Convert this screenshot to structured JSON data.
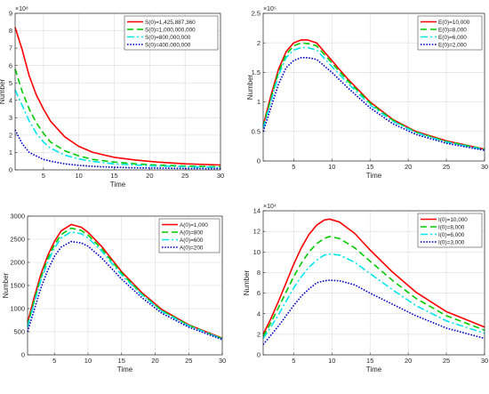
{
  "chart_data": [
    {
      "type": "line",
      "xlabel": "Time",
      "ylabel": "Number",
      "xlim": [
        1,
        30
      ],
      "ylim": [
        0,
        9
      ],
      "y_exponent": "×10⁸",
      "x_ticks": [
        "5",
        "10",
        "15",
        "20",
        "25",
        "30"
      ],
      "y_ticks": [
        "0",
        "1",
        "2",
        "3",
        "4",
        "5",
        "6",
        "7",
        "8",
        "9"
      ],
      "grid": true,
      "legend_position": "top-right",
      "x": [
        1,
        2,
        3,
        4,
        5,
        6,
        8,
        10,
        12,
        15,
        18,
        21,
        25,
        30
      ],
      "series": [
        {
          "name": "S(0)=1,425,887,360",
          "color": "#ff0000",
          "style": "solid",
          "values": [
            8.2,
            6.9,
            5.4,
            4.3,
            3.5,
            2.8,
            1.9,
            1.35,
            1.0,
            0.72,
            0.57,
            0.45,
            0.35,
            0.28
          ]
        },
        {
          "name": "S(0)=1,000,000,000",
          "color": "#00cc00",
          "style": "dashed",
          "values": [
            5.8,
            4.5,
            3.5,
            2.7,
            2.1,
            1.6,
            1.1,
            0.8,
            0.6,
            0.45,
            0.35,
            0.28,
            0.22,
            0.18
          ]
        },
        {
          "name": "S(0)=800,000,000",
          "color": "#00e5ee",
          "style": "dashdot",
          "values": [
            4.6,
            3.7,
            2.8,
            2.1,
            1.6,
            1.25,
            0.85,
            0.63,
            0.48,
            0.35,
            0.28,
            0.22,
            0.18,
            0.14
          ]
        },
        {
          "name": "S(0)=400,000,000",
          "color": "#0000cc",
          "style": "dotted",
          "values": [
            2.3,
            1.5,
            1.0,
            0.8,
            0.6,
            0.5,
            0.35,
            0.26,
            0.2,
            0.15,
            0.12,
            0.1,
            0.08,
            0.07
          ]
        }
      ]
    },
    {
      "type": "line",
      "xlabel": "Time",
      "ylabel": "Number",
      "xlim": [
        1,
        30
      ],
      "ylim": [
        0,
        2.5
      ],
      "y_exponent": "×10⁵",
      "x_ticks": [
        "5",
        "10",
        "15",
        "20",
        "25",
        "30"
      ],
      "y_ticks": [
        "0",
        "0.5",
        "1",
        "1.5",
        "2",
        "2.5"
      ],
      "grid": true,
      "legend_position": "top-right",
      "x": [
        1,
        2,
        3,
        4,
        5,
        6,
        6.8,
        8,
        10,
        12,
        15,
        18,
        21,
        25,
        30
      ],
      "series": [
        {
          "name": "E(0)=10,000",
          "color": "#ff0000",
          "style": "solid",
          "values": [
            0.6,
            1.1,
            1.55,
            1.85,
            2.0,
            2.05,
            2.05,
            2.0,
            1.7,
            1.4,
            1.0,
            0.7,
            0.5,
            0.34,
            0.2
          ]
        },
        {
          "name": "E(0)=8,000",
          "color": "#00cc00",
          "style": "dashed",
          "values": [
            0.58,
            1.05,
            1.5,
            1.8,
            1.95,
            2.0,
            1.99,
            1.95,
            1.66,
            1.37,
            0.98,
            0.69,
            0.49,
            0.33,
            0.2
          ]
        },
        {
          "name": "E(0)=6,000",
          "color": "#00e5ee",
          "style": "dashdot",
          "values": [
            0.55,
            1.0,
            1.45,
            1.75,
            1.88,
            1.92,
            1.92,
            1.88,
            1.6,
            1.33,
            0.95,
            0.67,
            0.48,
            0.32,
            0.19
          ]
        },
        {
          "name": "E(0)=2,000",
          "color": "#0000cc",
          "style": "dotted",
          "values": [
            0.5,
            0.9,
            1.3,
            1.58,
            1.7,
            1.75,
            1.75,
            1.72,
            1.5,
            1.25,
            0.9,
            0.63,
            0.45,
            0.3,
            0.18
          ]
        }
      ]
    },
    {
      "type": "line",
      "xlabel": "Time",
      "ylabel": "Number",
      "xlim": [
        1,
        30
      ],
      "ylim": [
        0,
        3000
      ],
      "y_exponent": "",
      "x_ticks": [
        "5",
        "10",
        "15",
        "20",
        "25",
        "30"
      ],
      "y_ticks": [
        "0",
        "500",
        "1000",
        "1500",
        "2000",
        "2500",
        "3000"
      ],
      "grid": true,
      "legend_position": "top-right",
      "x": [
        1,
        2,
        3,
        4,
        5,
        6,
        7.5,
        9,
        10,
        12,
        15,
        18,
        21,
        25,
        30
      ],
      "series": [
        {
          "name": "A(0)=1,000",
          "color": "#ff0000",
          "style": "solid",
          "values": [
            700,
            1250,
            1750,
            2150,
            2450,
            2680,
            2820,
            2760,
            2650,
            2350,
            1800,
            1350,
            980,
            650,
            360
          ]
        },
        {
          "name": "A(0)=800",
          "color": "#00cc00",
          "style": "dashed",
          "values": [
            640,
            1180,
            1680,
            2080,
            2380,
            2600,
            2740,
            2690,
            2590,
            2300,
            1770,
            1320,
            960,
            640,
            350
          ]
        },
        {
          "name": "A(0)=600",
          "color": "#00e5ee",
          "style": "dashdot",
          "values": [
            600,
            1130,
            1620,
            2010,
            2310,
            2530,
            2660,
            2620,
            2530,
            2250,
            1730,
            1300,
            940,
            630,
            345
          ]
        },
        {
          "name": "A(0)=200",
          "color": "#0000cc",
          "style": "dotted",
          "values": [
            500,
            980,
            1450,
            1830,
            2130,
            2330,
            2450,
            2420,
            2350,
            2100,
            1640,
            1240,
            900,
            600,
            330
          ]
        }
      ]
    },
    {
      "type": "line",
      "xlabel": "Time",
      "ylabel": "Number",
      "xlim": [
        1,
        30
      ],
      "ylim": [
        0,
        14
      ],
      "y_exponent": "×10⁴",
      "x_ticks": [
        "5",
        "10",
        "15",
        "20",
        "25",
        "30"
      ],
      "y_ticks": [
        "0",
        "2",
        "4",
        "6",
        "8",
        "10",
        "12",
        "14"
      ],
      "grid": true,
      "legend_position": "top-right",
      "x": [
        1,
        2,
        3,
        4,
        5,
        6,
        7,
        8,
        9,
        9.7,
        11,
        13,
        15,
        18,
        21,
        25,
        30
      ],
      "series": [
        {
          "name": "I(0)=10,000",
          "color": "#ff0000",
          "style": "solid",
          "values": [
            2.0,
            3.5,
            5.2,
            7.0,
            8.8,
            10.4,
            11.7,
            12.6,
            13.1,
            13.2,
            12.9,
            11.8,
            10.2,
            8.0,
            6.1,
            4.2,
            2.7
          ]
        },
        {
          "name": "I(0)=8,000",
          "color": "#00cc00",
          "style": "dashed",
          "values": [
            1.8,
            3.1,
            4.6,
            6.1,
            7.6,
            8.9,
            10.0,
            10.8,
            11.3,
            11.5,
            11.3,
            10.4,
            9.1,
            7.2,
            5.5,
            3.8,
            2.4
          ]
        },
        {
          "name": "I(0)=6,000",
          "color": "#00e5ee",
          "style": "dashdot",
          "values": [
            1.6,
            2.7,
            3.9,
            5.2,
            6.5,
            7.6,
            8.5,
            9.2,
            9.7,
            9.8,
            9.7,
            9.0,
            7.9,
            6.3,
            4.8,
            3.3,
            2.1
          ]
        },
        {
          "name": "I(0)=3,000",
          "color": "#0000cc",
          "style": "dotted",
          "values": [
            1.0,
            1.9,
            2.8,
            3.8,
            4.8,
            5.7,
            6.4,
            7.0,
            7.2,
            7.25,
            7.2,
            6.8,
            6.0,
            4.9,
            3.8,
            2.6,
            1.6
          ]
        }
      ]
    }
  ]
}
